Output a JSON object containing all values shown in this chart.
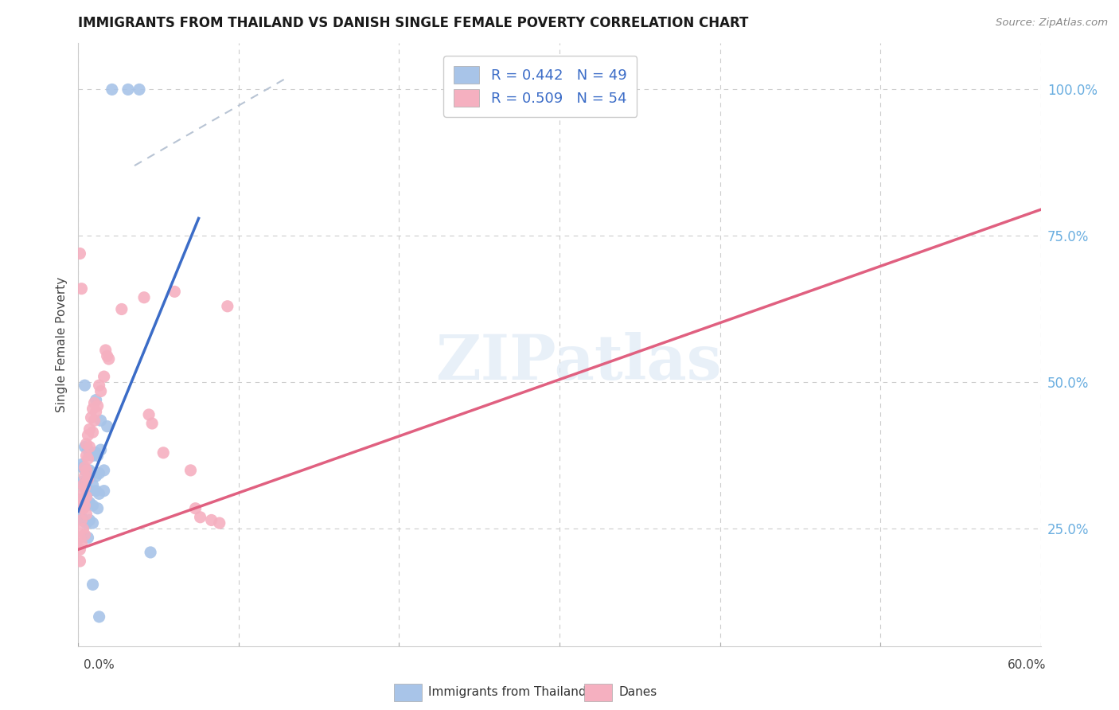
{
  "title": "IMMIGRANTS FROM THAILAND VS DANISH SINGLE FEMALE POVERTY CORRELATION CHART",
  "source": "Source: ZipAtlas.com",
  "ylabel": "Single Female Poverty",
  "watermark": "ZIPatlas",
  "blue_color": "#a8c4e8",
  "pink_color": "#f5b0c0",
  "blue_line_color": "#3b6cc7",
  "pink_line_color": "#e06080",
  "dashed_line_color": "#b8c4d4",
  "background_color": "#ffffff",
  "title_color": "#1a1a1a",
  "right_tick_color": "#6aaee0",
  "scatter_blue": [
    [
      0.021,
      1.0
    ],
    [
      0.031,
      1.0
    ],
    [
      0.038,
      1.0
    ],
    [
      0.004,
      0.495
    ],
    [
      0.011,
      0.47
    ],
    [
      0.014,
      0.435
    ],
    [
      0.018,
      0.425
    ],
    [
      0.004,
      0.39
    ],
    [
      0.006,
      0.385
    ],
    [
      0.007,
      0.38
    ],
    [
      0.009,
      0.375
    ],
    [
      0.011,
      0.38
    ],
    [
      0.012,
      0.375
    ],
    [
      0.014,
      0.385
    ],
    [
      0.002,
      0.36
    ],
    [
      0.003,
      0.355
    ],
    [
      0.004,
      0.35
    ],
    [
      0.006,
      0.345
    ],
    [
      0.007,
      0.35
    ],
    [
      0.009,
      0.345
    ],
    [
      0.011,
      0.34
    ],
    [
      0.013,
      0.345
    ],
    [
      0.016,
      0.35
    ],
    [
      0.002,
      0.33
    ],
    [
      0.003,
      0.325
    ],
    [
      0.005,
      0.32
    ],
    [
      0.007,
      0.315
    ],
    [
      0.009,
      0.325
    ],
    [
      0.011,
      0.315
    ],
    [
      0.013,
      0.31
    ],
    [
      0.016,
      0.315
    ],
    [
      0.001,
      0.3
    ],
    [
      0.003,
      0.295
    ],
    [
      0.005,
      0.29
    ],
    [
      0.007,
      0.295
    ],
    [
      0.009,
      0.29
    ],
    [
      0.012,
      0.285
    ],
    [
      0.002,
      0.27
    ],
    [
      0.003,
      0.265
    ],
    [
      0.005,
      0.26
    ],
    [
      0.007,
      0.265
    ],
    [
      0.009,
      0.26
    ],
    [
      0.006,
      0.235
    ],
    [
      0.045,
      0.21
    ],
    [
      0.009,
      0.155
    ],
    [
      0.013,
      0.1
    ]
  ],
  "scatter_pink": [
    [
      0.001,
      0.72
    ],
    [
      0.002,
      0.66
    ],
    [
      0.041,
      0.645
    ],
    [
      0.027,
      0.625
    ],
    [
      0.017,
      0.555
    ],
    [
      0.018,
      0.545
    ],
    [
      0.019,
      0.54
    ],
    [
      0.016,
      0.51
    ],
    [
      0.013,
      0.495
    ],
    [
      0.014,
      0.485
    ],
    [
      0.01,
      0.465
    ],
    [
      0.012,
      0.46
    ],
    [
      0.009,
      0.455
    ],
    [
      0.011,
      0.45
    ],
    [
      0.008,
      0.44
    ],
    [
      0.01,
      0.435
    ],
    [
      0.007,
      0.42
    ],
    [
      0.009,
      0.415
    ],
    [
      0.006,
      0.41
    ],
    [
      0.005,
      0.395
    ],
    [
      0.007,
      0.39
    ],
    [
      0.005,
      0.375
    ],
    [
      0.006,
      0.37
    ],
    [
      0.004,
      0.355
    ],
    [
      0.005,
      0.35
    ],
    [
      0.004,
      0.34
    ],
    [
      0.006,
      0.335
    ],
    [
      0.003,
      0.325
    ],
    [
      0.004,
      0.32
    ],
    [
      0.003,
      0.31
    ],
    [
      0.005,
      0.305
    ],
    [
      0.002,
      0.3
    ],
    [
      0.003,
      0.295
    ],
    [
      0.004,
      0.29
    ],
    [
      0.003,
      0.285
    ],
    [
      0.005,
      0.275
    ],
    [
      0.002,
      0.265
    ],
    [
      0.003,
      0.25
    ],
    [
      0.004,
      0.24
    ],
    [
      0.001,
      0.235
    ],
    [
      0.002,
      0.225
    ],
    [
      0.001,
      0.215
    ],
    [
      0.001,
      0.195
    ],
    [
      0.06,
      0.655
    ],
    [
      0.044,
      0.445
    ],
    [
      0.046,
      0.43
    ],
    [
      0.053,
      0.38
    ],
    [
      0.07,
      0.35
    ],
    [
      0.073,
      0.285
    ],
    [
      0.076,
      0.27
    ],
    [
      0.083,
      0.265
    ],
    [
      0.088,
      0.26
    ],
    [
      0.093,
      0.63
    ]
  ],
  "blue_line_x": [
    0.0,
    0.075
  ],
  "blue_line_y": [
    0.28,
    0.78
  ],
  "pink_line_x": [
    0.0,
    0.6
  ],
  "pink_line_y": [
    0.215,
    0.795
  ],
  "dashed_line_x": [
    0.035,
    0.13
  ],
  "dashed_line_y": [
    0.87,
    1.02
  ],
  "xlim": [
    0.0,
    0.6
  ],
  "ylim": [
    0.05,
    1.08
  ],
  "ytick_positions": [
    0.25,
    0.5,
    0.75,
    1.0
  ],
  "ytick_labels": [
    "25.0%",
    "50.0%",
    "75.0%",
    "100.0%"
  ]
}
